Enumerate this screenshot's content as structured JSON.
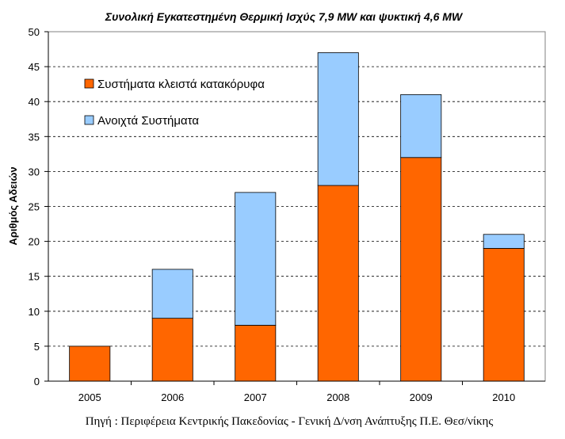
{
  "chart_data": {
    "type": "bar",
    "stacked": true,
    "title": "Συνολική Εγκατεστημένη Θερμική Ισχύς 7,9 MW και ψυκτική 4,6 MW",
    "xlabel": "",
    "ylabel": "Αριθμός Αδειών",
    "categories": [
      "2005",
      "2006",
      "2007",
      "2008",
      "2009",
      "2010"
    ],
    "ylim": [
      0,
      50
    ],
    "yticks": [
      0,
      5,
      10,
      15,
      20,
      25,
      30,
      35,
      40,
      45,
      50
    ],
    "grid": true,
    "legend_position": "top-left",
    "series": [
      {
        "name": "Συστήματα κλειστά κατακόρυφα",
        "color": "#FF6600",
        "values": [
          5,
          9,
          8,
          28,
          32,
          19
        ]
      },
      {
        "name": "Ανοιχτά Συστήματα",
        "color": "#99CCFF",
        "values": [
          0,
          7,
          19,
          19,
          9,
          2
        ]
      }
    ],
    "source": "Πηγή : Περιφέρεια Κεντρικής Πακεδονίας - Γενική Δ/νση Ανάπτυξης Π.Ε. Θεσ/νίκης"
  }
}
